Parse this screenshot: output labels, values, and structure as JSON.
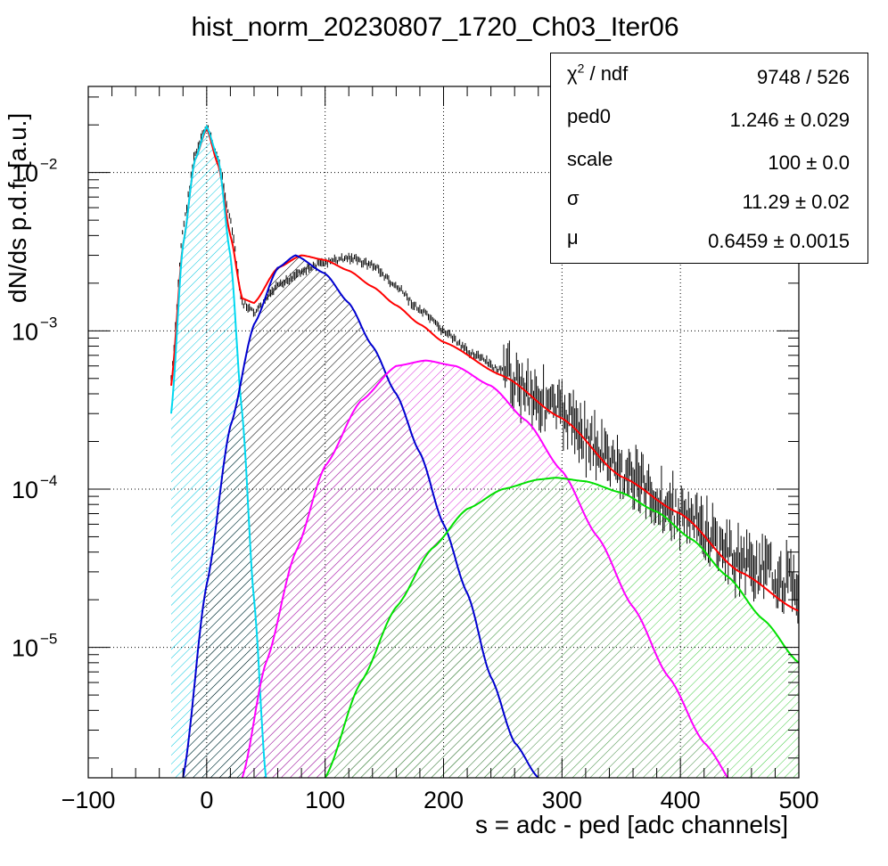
{
  "chart_data": {
    "type": "line",
    "title": "hist_norm_20230807_1720_Ch03_Iter06",
    "xlabel": "s = adc - ped [adc channels]",
    "ylabel": "dN/ds p.d.f. [a.u.]",
    "xlim": [
      -100,
      500
    ],
    "ylim": [
      1.5e-06,
      0.035
    ],
    "yscale": "log",
    "grid": true,
    "x_ticks": [
      "−100",
      "0",
      "100",
      "200",
      "300",
      "400",
      "500"
    ],
    "y_ticks": [
      {
        "base": "10",
        "exp": "−2",
        "value": 0.01
      },
      {
        "base": "10",
        "exp": "−3",
        "value": 0.001
      },
      {
        "base": "10",
        "exp": "−4",
        "value": 0.0001
      },
      {
        "base": "10",
        "exp": "−5",
        "value": 1e-05
      }
    ],
    "series": [
      {
        "role": "data-histogram",
        "color": "#000000",
        "x": [
          -30,
          -20,
          -10,
          0,
          10,
          20,
          30,
          40,
          60,
          80,
          100,
          120,
          140,
          160,
          180,
          200,
          220,
          250,
          300,
          350,
          400,
          450,
          500
        ],
        "y": [
          0.0005,
          0.0045,
          0.013,
          0.0195,
          0.012,
          0.005,
          0.0015,
          0.0013,
          0.0019,
          0.0024,
          0.0027,
          0.0029,
          0.0026,
          0.0019,
          0.00135,
          0.001,
          0.00075,
          0.00055,
          0.0003,
          0.00013,
          7e-05,
          3.5e-05,
          2.5e-05
        ]
      },
      {
        "role": "total-fit",
        "color": "#ff0000",
        "x": [
          -30,
          -20,
          -10,
          0,
          10,
          20,
          30,
          40,
          60,
          80,
          100,
          120,
          140,
          160,
          180,
          200,
          250,
          300,
          350,
          400,
          450,
          500
        ],
        "y": [
          0.00045,
          0.0035,
          0.012,
          0.019,
          0.011,
          0.004,
          0.0016,
          0.0015,
          0.0025,
          0.003,
          0.0028,
          0.0024,
          0.0019,
          0.00145,
          0.0011,
          0.00085,
          0.00052,
          0.00028,
          0.00012,
          7e-05,
          3e-05,
          1.7e-05
        ]
      },
      {
        "role": "pedestal",
        "color": "#00d8f0",
        "x": [
          -30,
          -20,
          -10,
          0,
          10,
          20,
          30,
          40,
          50
        ],
        "y": [
          0.0003,
          0.0035,
          0.012,
          0.0195,
          0.012,
          0.003,
          0.0003,
          2e-05,
          1.5e-06
        ]
      },
      {
        "role": "1pe",
        "color": "#0000d0",
        "x": [
          -20,
          0,
          20,
          40,
          60,
          75,
          100,
          120,
          140,
          160,
          180,
          200,
          220,
          240,
          260,
          280,
          300
        ],
        "y": [
          1.5e-06,
          2.5e-05,
          0.00025,
          0.0011,
          0.0025,
          0.003,
          0.0023,
          0.0015,
          0.0008,
          0.0004,
          0.00017,
          6e-05,
          2.2e-05,
          6.5e-06,
          2.5e-06,
          1.5e-06,
          1.2e-06
        ]
      },
      {
        "role": "2pe",
        "color": "#ff00ff",
        "x": [
          30,
          50,
          75,
          100,
          130,
          160,
          185,
          210,
          240,
          270,
          300,
          330,
          360,
          390,
          420,
          450
        ],
        "y": [
          1.5e-06,
          8e-06,
          4e-05,
          0.00014,
          0.00036,
          0.0006,
          0.00065,
          0.0006,
          0.00045,
          0.00027,
          0.00013,
          5e-05,
          1.8e-05,
          6.5e-06,
          2.5e-06,
          1.2e-06
        ]
      },
      {
        "role": "3pe",
        "color": "#00e000",
        "x": [
          100,
          130,
          160,
          190,
          220,
          250,
          280,
          295,
          320,
          350,
          380,
          410,
          440,
          470,
          500
        ],
        "y": [
          1.5e-06,
          6e-06,
          1.8e-05,
          4.2e-05,
          7.5e-05,
          0.0001,
          0.000115,
          0.000118,
          0.000112,
          9.5e-05,
          7.2e-05,
          4.8e-05,
          2.8e-05,
          1.5e-05,
          8e-06
        ]
      }
    ],
    "stats_box": [
      {
        "key_base": "χ",
        "key_sup": "2",
        "key_rest": " / ndf",
        "value": "9748 / 526"
      },
      {
        "key_base": "ped0",
        "key_sup": "",
        "key_rest": "",
        "value": "1.246 ± 0.029"
      },
      {
        "key_base": "scale",
        "key_sup": "",
        "key_rest": "",
        "value": "100 ± 0.0"
      },
      {
        "key_base": "σ",
        "key_sup": "",
        "key_rest": "",
        "value": "11.29 ± 0.02"
      },
      {
        "key_base": "μ",
        "key_sup": "",
        "key_rest": "",
        "value": "0.6459 ± 0.0015"
      }
    ]
  }
}
